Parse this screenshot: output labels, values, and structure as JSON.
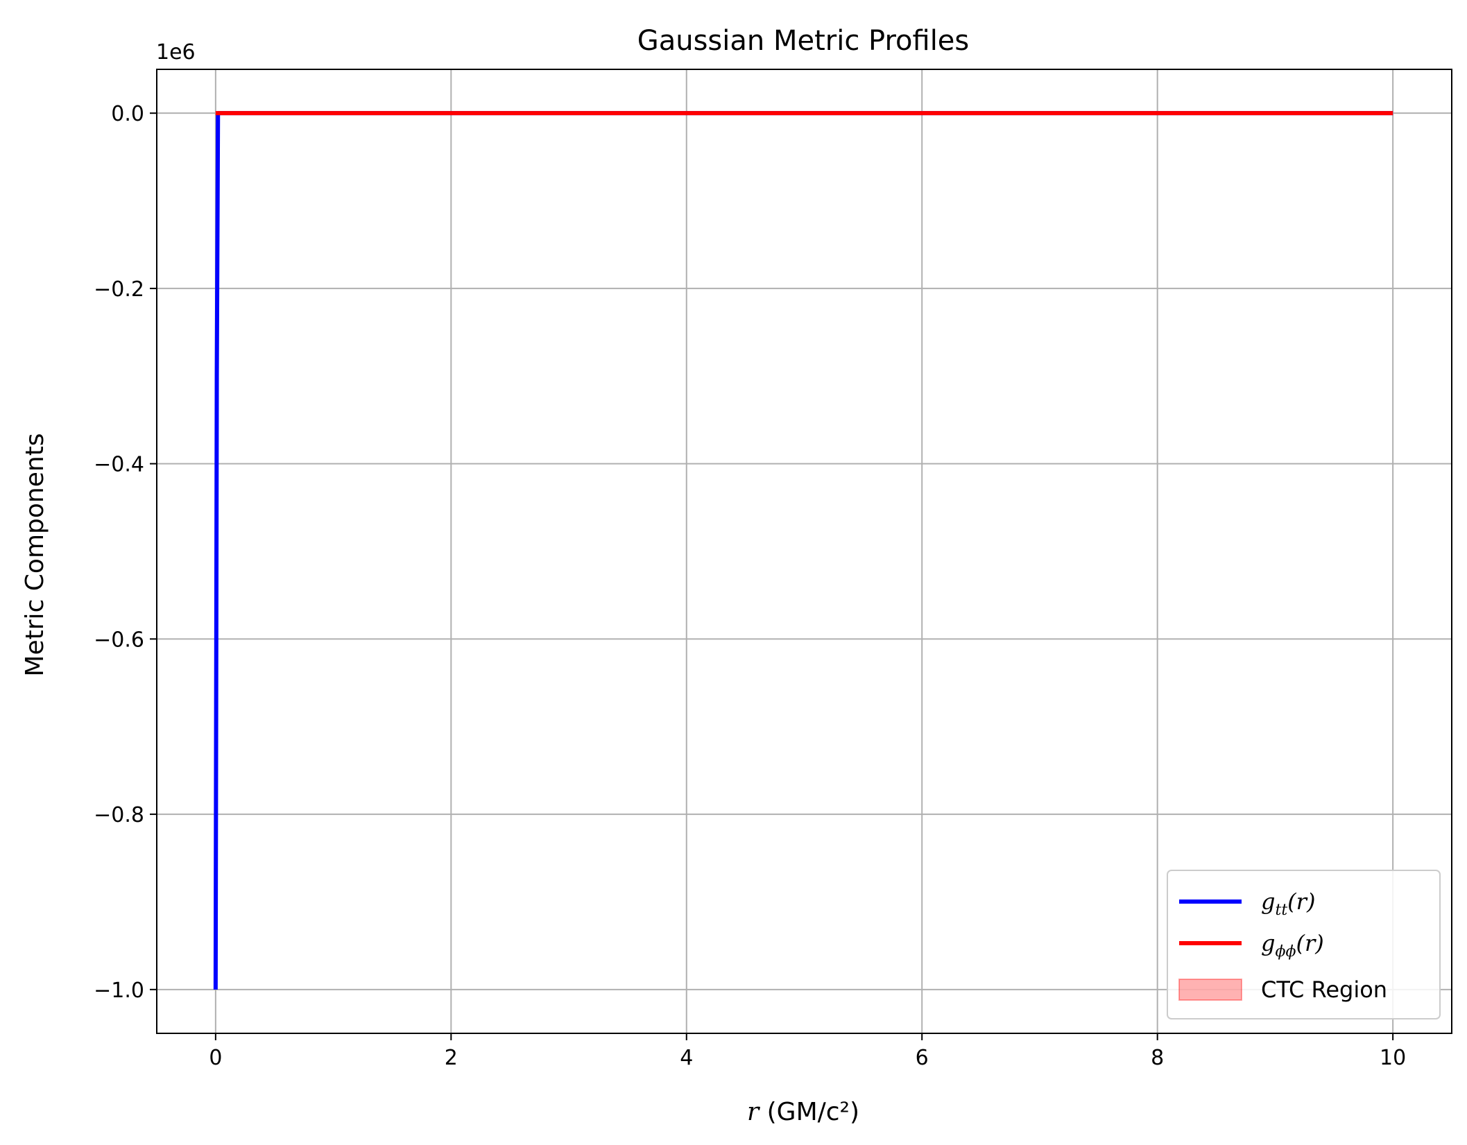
{
  "chart_data": {
    "type": "line",
    "title": "Gaussian Metric Profiles",
    "xlabel_var": "r",
    "xlabel_unit": " (GM/c²)",
    "ylabel": "Metric Components",
    "y_offset_text": "1e6",
    "xlim": [
      -0.5,
      10.5
    ],
    "ylim": [
      -1.05,
      0.05
    ],
    "y_scale_factor": 1000000,
    "x_ticks": [
      0,
      2,
      4,
      6,
      8,
      10
    ],
    "x_tick_labels": [
      "0",
      "2",
      "4",
      "6",
      "8",
      "10"
    ],
    "y_ticks": [
      0.0,
      -0.2,
      -0.4,
      -0.6,
      -0.8,
      -1.0
    ],
    "y_tick_labels": [
      "0.0",
      "−0.2",
      "−0.4",
      "−0.6",
      "−0.8",
      "−1.0"
    ],
    "grid": true,
    "legend_position": "lower-right",
    "series": [
      {
        "name": "g_tt(r)",
        "label_base": "g",
        "label_sub": "tt",
        "label_suffix": "(r)",
        "color": "#0000ff",
        "x": [
          0.0,
          0.01,
          0.02,
          10.0
        ],
        "y": [
          -1.0,
          -0.3,
          0.0,
          0.0
        ]
      },
      {
        "name": "g_φφ(r)",
        "label_base": "g",
        "label_sub": "ϕϕ",
        "label_suffix": "(r)",
        "color": "#ff0000",
        "x": [
          0.0,
          10.0
        ],
        "y": [
          0.0,
          0.0
        ]
      }
    ],
    "legend_extra": [
      {
        "name": "CTC Region",
        "label": "CTC Region",
        "fill": "#ff0000",
        "fill_opacity": 0.3
      }
    ]
  }
}
